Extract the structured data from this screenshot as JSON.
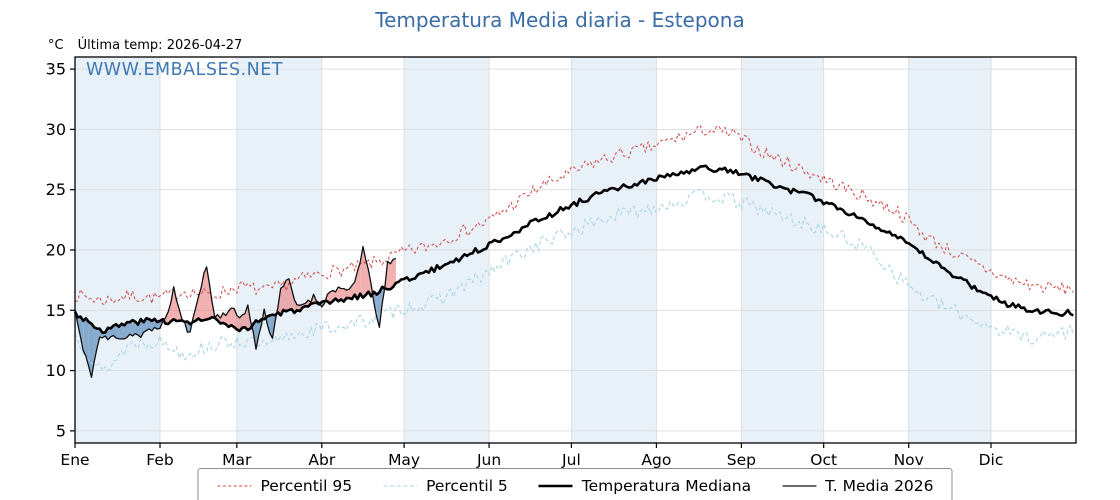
{
  "chart_data": {
    "type": "line",
    "title": "Temperatura Media diaria - Estepona",
    "title_color": "#3a6ca5",
    "ylabel": "°C",
    "last_temp_label": "Última temp: 2026-04-27",
    "watermark": "WWW.EMBALSES.NET",
    "watermark_color": "#3e79b5",
    "months": [
      "Ene",
      "Feb",
      "Mar",
      "Abr",
      "May",
      "Jun",
      "Jul",
      "Ago",
      "Sep",
      "Oct",
      "Nov",
      "Dic"
    ],
    "month_days": [
      31,
      28,
      31,
      30,
      31,
      30,
      31,
      31,
      30,
      31,
      30,
      31
    ],
    "yticks": [
      5,
      10,
      15,
      20,
      25,
      30,
      35
    ],
    "ylim": [
      4,
      36
    ],
    "grid": true,
    "grid_color": "#dcdcdc",
    "band_color": "#e8f1f8",
    "axis_color": "#000000",
    "legend_position": "bottom",
    "series": [
      {
        "name": "Percentil 95",
        "color": "#d04444",
        "dash": "3 2.4",
        "width": 1.0,
        "sample_interval_days": 10,
        "noise": 0.55,
        "seed": 7,
        "values": [
          16.3,
          15.8,
          16.2,
          16.0,
          16.6,
          16.2,
          17.0,
          16.6,
          17.4,
          18.1,
          18.4,
          19.0,
          19.8,
          20.4,
          21.4,
          22.3,
          23.8,
          25.3,
          26.3,
          27.3,
          28.0,
          28.5,
          29.3,
          30.0,
          29.6,
          28.2,
          27.2,
          26.2,
          25.2,
          24.2,
          23.2,
          21.2,
          19.8,
          18.6,
          17.6,
          17.0,
          16.8
        ]
      },
      {
        "name": "Percentil 5",
        "color": "#a9d4e8",
        "dash": "4 2.6",
        "width": 1.1,
        "sample_interval_days": 10,
        "noise": 0.6,
        "seed": 13,
        "values": [
          13.0,
          9.8,
          12.2,
          12.5,
          11.4,
          12.1,
          12.5,
          12.0,
          13.0,
          13.5,
          13.8,
          14.4,
          15.2,
          15.6,
          16.8,
          18.0,
          19.4,
          20.6,
          21.4,
          22.4,
          23.0,
          23.5,
          24.0,
          24.6,
          24.1,
          23.4,
          22.6,
          21.9,
          21.0,
          20.0,
          17.8,
          16.0,
          15.0,
          14.0,
          13.2,
          12.7,
          13.2
        ]
      },
      {
        "name": "Temperatura Mediana",
        "color": "#000000",
        "dash": "",
        "width": 2.6,
        "sample_interval_days": 10,
        "noise": 0.25,
        "seed": 3,
        "values": [
          14.8,
          13.3,
          14.0,
          14.2,
          14.0,
          14.3,
          13.2,
          14.5,
          15.0,
          15.5,
          16.0,
          16.5,
          17.5,
          18.3,
          19.3,
          20.3,
          21.5,
          22.6,
          23.6,
          24.6,
          25.2,
          25.8,
          26.3,
          26.8,
          26.5,
          25.8,
          25.0,
          24.3,
          23.3,
          22.3,
          21.0,
          19.5,
          18.0,
          16.6,
          15.5,
          15.0,
          14.8
        ]
      },
      {
        "name": "T. Media 2026",
        "color": "#111111",
        "dash": "",
        "width": 1.3,
        "noise": 0.3,
        "seed": 11,
        "end_day": 117,
        "days": [
          0,
          3,
          6,
          9,
          12,
          15,
          18,
          21,
          24,
          27,
          30,
          33,
          36,
          39,
          42,
          45,
          48,
          51,
          54,
          57,
          60,
          63,
          66,
          69,
          72,
          75,
          78,
          81,
          84,
          87,
          90,
          93,
          96,
          99,
          102,
          105,
          108,
          111,
          114,
          117
        ],
        "values": [
          15.0,
          11.6,
          9.7,
          12.8,
          12.6,
          12.9,
          12.7,
          13.1,
          12.8,
          13.3,
          13.6,
          14.1,
          16.8,
          14.2,
          13.0,
          16.4,
          18.6,
          14.4,
          14.7,
          15.1,
          14.4,
          15.3,
          11.9,
          14.9,
          12.6,
          16.9,
          17.4,
          15.2,
          15.7,
          16.1,
          15.5,
          16.5,
          16.9,
          16.4,
          17.3,
          20.2,
          17.0,
          13.5,
          18.8,
          19.2
        ]
      }
    ],
    "fill": {
      "between": [
        "Temperatura Mediana",
        "T. Media 2026"
      ],
      "below_color": "rgba(101,145,191,0.75)",
      "above_color": "rgba(231,121,121,0.6)"
    }
  }
}
